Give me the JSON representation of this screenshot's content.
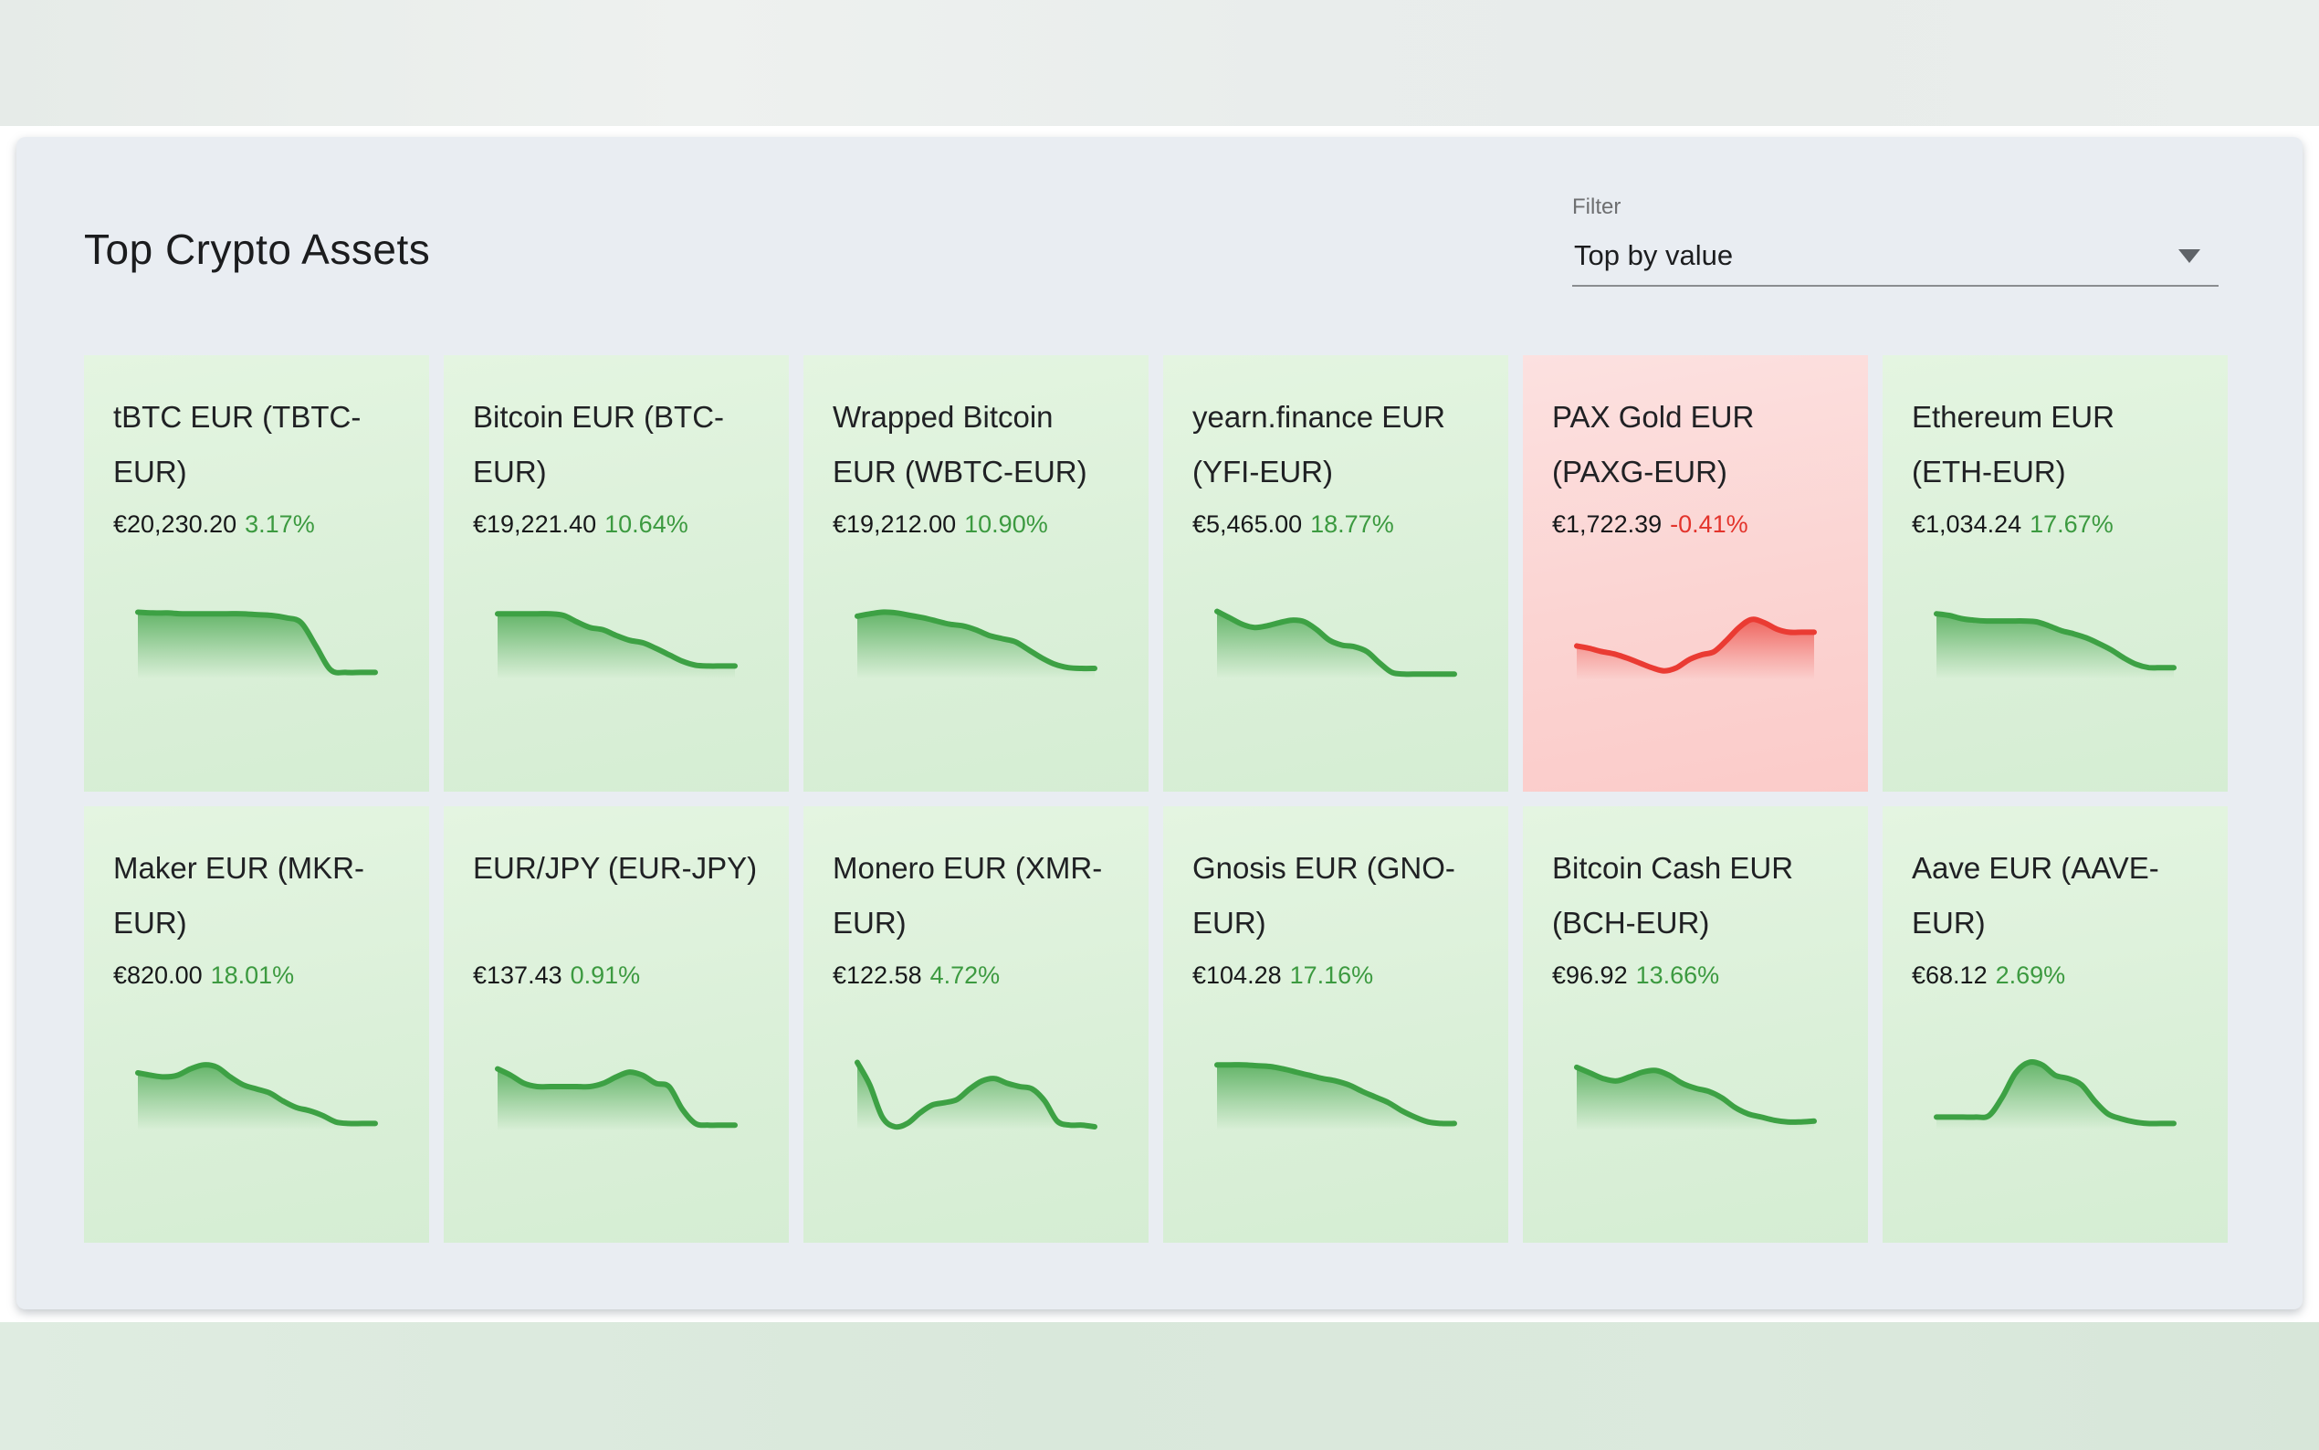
{
  "header": {
    "title": "Top Crypto Assets"
  },
  "filter": {
    "label": "Filter",
    "value": "Top by value"
  },
  "colors": {
    "positive_text": "#3c9a40",
    "negative_text": "#e3342c",
    "line_up": "#3da144",
    "line_down": "#ea3b33",
    "panel_bg": "#e9edf2",
    "card_up_bg": "#dbf0d9",
    "card_down_bg": "#fbd4d2"
  },
  "chart_data": [
    {
      "type": "area",
      "name": "tBTC EUR (TBTC-EUR)",
      "price": "€20,230.20",
      "change": "3.17%",
      "direction": "up",
      "spark": [
        87,
        86,
        86,
        85,
        85,
        85,
        85,
        85,
        84,
        83,
        80,
        74,
        45,
        15,
        12,
        12,
        12
      ]
    },
    {
      "type": "area",
      "name": "Bitcoin EUR (BTC-EUR)",
      "price": "€19,221.40",
      "change": "10.64%",
      "direction": "up",
      "spark": [
        85,
        85,
        85,
        85,
        85,
        83,
        75,
        68,
        65,
        58,
        52,
        49,
        42,
        34,
        26,
        21,
        20,
        20,
        20
      ]
    },
    {
      "type": "area",
      "name": "Wrapped Bitcoin EUR (WBTC-EUR)",
      "price": "€19,212.00",
      "change": "10.90%",
      "direction": "up",
      "spark": [
        82,
        85,
        87,
        86,
        83,
        80,
        76,
        72,
        70,
        65,
        58,
        54,
        50,
        40,
        30,
        22,
        18,
        17,
        17
      ]
    },
    {
      "type": "area",
      "name": "yearn.finance EUR (YFI-EUR)",
      "price": "€5,465.00",
      "change": "18.77%",
      "direction": "up",
      "spark": [
        88,
        80,
        72,
        68,
        70,
        74,
        77,
        75,
        65,
        52,
        46,
        44,
        38,
        24,
        12,
        10,
        10,
        10,
        10,
        10
      ]
    },
    {
      "type": "area",
      "name": "PAX Gold EUR (PAXG-EUR)",
      "price": "€1,722.39",
      "change": "-0.41%",
      "direction": "down",
      "spark": [
        45,
        42,
        38,
        35,
        30,
        24,
        18,
        14,
        18,
        28,
        34,
        38,
        52,
        68,
        78,
        74,
        66,
        62,
        62,
        62
      ]
    },
    {
      "type": "area",
      "name": "Ethereum EUR (ETH-EUR)",
      "price": "€1,034.24",
      "change": "17.67%",
      "direction": "up",
      "spark": [
        85,
        83,
        79,
        77,
        76,
        76,
        76,
        76,
        75,
        70,
        64,
        60,
        55,
        48,
        40,
        30,
        22,
        18,
        18,
        18
      ]
    },
    {
      "type": "area",
      "name": "Maker EUR (MKR-EUR)",
      "price": "€820.00",
      "change": "18.01%",
      "direction": "up",
      "spark": [
        75,
        72,
        70,
        72,
        80,
        85,
        82,
        70,
        60,
        55,
        50,
        40,
        32,
        28,
        22,
        14,
        12,
        12,
        12
      ]
    },
    {
      "type": "area",
      "name": "EUR/JPY (EUR-JPY)",
      "price": "€137.43",
      "change": "0.91%",
      "direction": "up",
      "spark": [
        80,
        72,
        62,
        58,
        58,
        58,
        58,
        58,
        62,
        70,
        76,
        72,
        62,
        58,
        30,
        12,
        10,
        10,
        10
      ]
    },
    {
      "type": "area",
      "name": "Monero EUR (XMR-EUR)",
      "price": "€122.58",
      "change": "4.72%",
      "direction": "up",
      "spark": [
        88,
        60,
        20,
        8,
        12,
        25,
        35,
        38,
        42,
        55,
        65,
        68,
        62,
        58,
        55,
        40,
        15,
        10,
        10,
        8
      ]
    },
    {
      "type": "area",
      "name": "Gnosis EUR (GNO-EUR)",
      "price": "€104.28",
      "change": "17.16%",
      "direction": "up",
      "spark": [
        85,
        85,
        85,
        84,
        83,
        80,
        76,
        72,
        68,
        65,
        60,
        52,
        45,
        38,
        28,
        20,
        14,
        12,
        12
      ]
    },
    {
      "type": "area",
      "name": "Bitcoin Cash EUR (BCH-EUR)",
      "price": "€96.92",
      "change": "13.66%",
      "direction": "up",
      "spark": [
        82,
        75,
        68,
        65,
        70,
        76,
        78,
        72,
        62,
        56,
        52,
        44,
        32,
        24,
        20,
        16,
        14,
        14,
        15
      ]
    },
    {
      "type": "area",
      "name": "Aave EUR (AAVE-EUR)",
      "price": "€68.12",
      "change": "2.69%",
      "direction": "up",
      "spark": [
        20,
        20,
        20,
        20,
        22,
        45,
        75,
        88,
        85,
        72,
        68,
        60,
        40,
        24,
        18,
        14,
        12,
        12,
        12
      ]
    }
  ]
}
